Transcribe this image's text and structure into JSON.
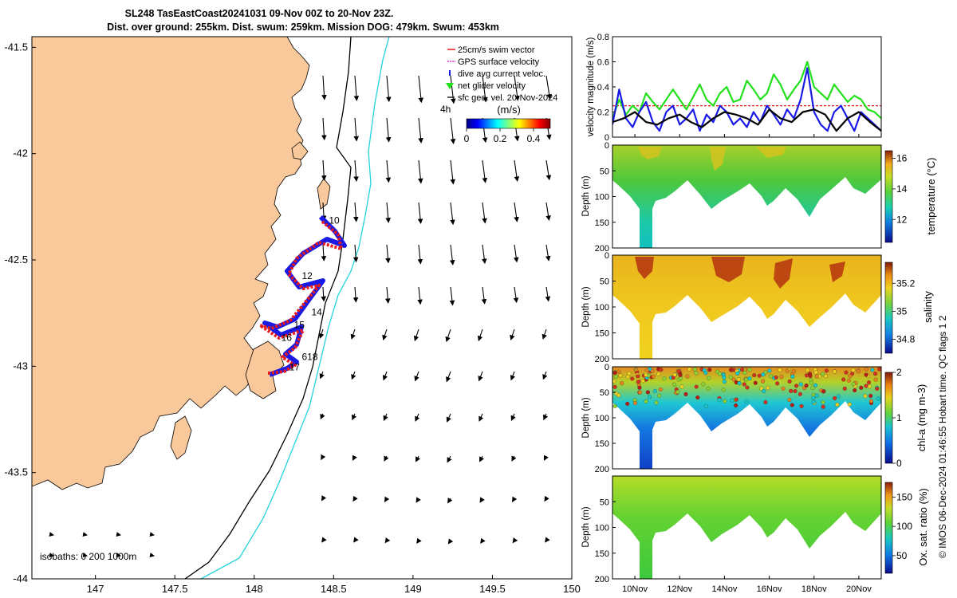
{
  "title": {
    "line1": "SL248 TasEastCoast20241031 09-Nov 00Z to 20-Nov 23Z.",
    "line2": "Dist. over ground: 255km. Dist. swum: 259km. Mission DOG: 479km. Swum: 453km"
  },
  "footer_note": "© IMOS 06-Dec-2024 01:46:55 Hobart time. QC flags 1 2",
  "colors": {
    "land": "#f9c89b",
    "swim_vector": "#e8191b",
    "gps_velocity": "#e030e0",
    "dive_current": "#1a1ae6",
    "net_glider": "#22e01a",
    "geo_vel": "#000000",
    "isobath_200": "#000000",
    "isobath_1000": "#22d3dd"
  },
  "chart_data": [
    {
      "type": "scatter",
      "name": "map",
      "xlim": [
        146.6,
        150.0
      ],
      "ylim": [
        -44.0,
        -41.45
      ],
      "xticks": [
        "147",
        "147.5",
        "148",
        "148.5",
        "149",
        "149.5",
        "150"
      ],
      "yticks": [
        "-41.5",
        "-42",
        "-42.5",
        "-43",
        "-43.5",
        "-44"
      ],
      "legend": [
        "25cm/s swim vector",
        "GPS surface velocity",
        "dive avg current veloc.",
        "net glider velocity",
        "sfc geo. vel. 20-Nov-2024"
      ],
      "legend_time_label": "4h",
      "colorbar": {
        "label": "(m/s)",
        "ticks": [
          "0",
          "0.2",
          "0.4"
        ],
        "range": [
          0,
          0.5
        ]
      },
      "isobaths_label": "isobaths: 0   200   1000m",
      "track_day_labels": [
        {
          "text": "10",
          "lon": 148.47,
          "lat": -42.33
        },
        {
          "text": "12",
          "lon": 148.3,
          "lat": -42.59
        },
        {
          "text": "14",
          "lon": 148.36,
          "lat": -42.76
        },
        {
          "text": "15",
          "lon": 148.25,
          "lat": -42.82
        },
        {
          "text": "16",
          "lon": 148.17,
          "lat": -42.88
        },
        {
          "text": "618",
          "lon": 148.3,
          "lat": -42.97
        },
        {
          "text": "17",
          "lon": 148.22,
          "lat": -43.02
        }
      ]
    },
    {
      "type": "line",
      "name": "velocity-magnitude",
      "ylabel": "velocity magnitude (m/s)",
      "ylim": [
        0,
        0.8
      ],
      "yticks": [
        "0",
        "0.2",
        "0.4",
        "0.6",
        "0.8"
      ],
      "xlim": [
        9.0,
        21.0
      ],
      "series": [
        {
          "name": "25cm/s swim vector",
          "color": "#e8191b",
          "x": [
            9.0,
            21.0
          ],
          "y": [
            0.25,
            0.25
          ]
        },
        {
          "name": "net glider velocity",
          "color": "#22e01a",
          "x": [
            9.0,
            9.3,
            9.6,
            9.9,
            10.2,
            10.5,
            10.8,
            11.1,
            11.4,
            11.7,
            12.0,
            12.3,
            12.6,
            12.9,
            13.2,
            13.5,
            13.8,
            14.1,
            14.4,
            14.7,
            15.0,
            15.3,
            15.6,
            15.9,
            16.2,
            16.5,
            16.8,
            17.1,
            17.4,
            17.7,
            18.0,
            18.3,
            18.6,
            18.9,
            19.2,
            19.5,
            19.8,
            20.1,
            20.4,
            20.7,
            21.0
          ],
          "y": [
            0.15,
            0.3,
            0.18,
            0.25,
            0.2,
            0.35,
            0.28,
            0.22,
            0.3,
            0.38,
            0.3,
            0.22,
            0.32,
            0.42,
            0.3,
            0.25,
            0.35,
            0.4,
            0.28,
            0.3,
            0.45,
            0.38,
            0.3,
            0.35,
            0.5,
            0.42,
            0.3,
            0.38,
            0.45,
            0.6,
            0.4,
            0.35,
            0.3,
            0.42,
            0.35,
            0.28,
            0.33,
            0.3,
            0.22,
            0.2,
            0.15
          ]
        },
        {
          "name": "dive avg current veloc.",
          "color": "#1a1ae6",
          "x": [
            9.0,
            9.3,
            9.6,
            9.9,
            10.2,
            10.5,
            10.8,
            11.1,
            11.4,
            11.7,
            12.0,
            12.3,
            12.6,
            12.9,
            13.2,
            13.5,
            13.8,
            14.1,
            14.4,
            14.7,
            15.0,
            15.3,
            15.6,
            15.9,
            16.2,
            16.5,
            16.8,
            17.1,
            17.4,
            17.7,
            18.0,
            18.3,
            18.6,
            18.9,
            19.2,
            19.5,
            19.8,
            20.1,
            20.4,
            20.7,
            21.0
          ],
          "y": [
            0.1,
            0.38,
            0.15,
            0.08,
            0.2,
            0.28,
            0.12,
            0.05,
            0.2,
            0.25,
            0.1,
            0.15,
            0.22,
            0.05,
            0.18,
            0.12,
            0.25,
            0.2,
            0.1,
            0.15,
            0.08,
            0.2,
            0.12,
            0.25,
            0.18,
            0.1,
            0.22,
            0.15,
            0.3,
            0.55,
            0.2,
            0.1,
            0.05,
            0.2,
            0.25,
            0.15,
            0.05,
            0.2,
            0.15,
            0.1,
            0.05
          ]
        },
        {
          "name": "sfc geo. vel.",
          "color": "#000000",
          "x": [
            9.0,
            9.5,
            10.0,
            10.5,
            11.0,
            11.5,
            12.0,
            12.5,
            13.0,
            13.5,
            14.0,
            14.5,
            15.0,
            15.5,
            16.0,
            16.5,
            17.0,
            17.5,
            18.0,
            18.5,
            19.0,
            19.5,
            20.0,
            20.5,
            21.0
          ],
          "y": [
            0.12,
            0.15,
            0.2,
            0.12,
            0.1,
            0.15,
            0.18,
            0.12,
            0.08,
            0.15,
            0.2,
            0.18,
            0.15,
            0.1,
            0.22,
            0.15,
            0.12,
            0.2,
            0.22,
            0.18,
            0.05,
            0.15,
            0.2,
            0.12,
            0.05
          ]
        }
      ]
    },
    {
      "type": "heatmap",
      "name": "temperature",
      "ylabel": "Depth (m)",
      "yticks": [
        "0",
        "50",
        "100",
        "150",
        "200"
      ],
      "ylim": [
        200,
        0
      ],
      "colorbar": {
        "label": "temperature (°C)",
        "ticks": [
          "12",
          "14",
          "16"
        ],
        "range": [
          10.5,
          16.5
        ]
      }
    },
    {
      "type": "heatmap",
      "name": "salinity",
      "ylabel": "Depth (m)",
      "yticks": [
        "0",
        "50",
        "100",
        "150",
        "200"
      ],
      "ylim": [
        200,
        0
      ],
      "colorbar": {
        "label": "salinity",
        "ticks": [
          "34.8",
          "35",
          "35.2"
        ],
        "range": [
          34.7,
          35.35
        ]
      }
    },
    {
      "type": "heatmap",
      "name": "chl-a",
      "ylabel": "Depth (m)",
      "yticks": [
        "0",
        "50",
        "100",
        "150",
        "200"
      ],
      "ylim": [
        200,
        0
      ],
      "colorbar": {
        "label": "chl-a (mg m-3)",
        "ticks": [
          "0",
          "1",
          "2"
        ],
        "range": [
          0,
          2
        ]
      }
    },
    {
      "type": "heatmap",
      "name": "oxygen",
      "ylabel": "Depth (m)",
      "yticks": [
        "50",
        "100",
        "150",
        "200"
      ],
      "ylim": [
        200,
        0
      ],
      "colorbar": {
        "label": "Ox. sat. ratio (%)",
        "ticks": [
          "50",
          "100",
          "150"
        ],
        "range": [
          20,
          175
        ]
      },
      "xticks": [
        "10Nov",
        "12Nov",
        "14Nov",
        "16Nov",
        "18Nov",
        "20Nov"
      ],
      "xlim": [
        9.0,
        21.0
      ]
    }
  ]
}
